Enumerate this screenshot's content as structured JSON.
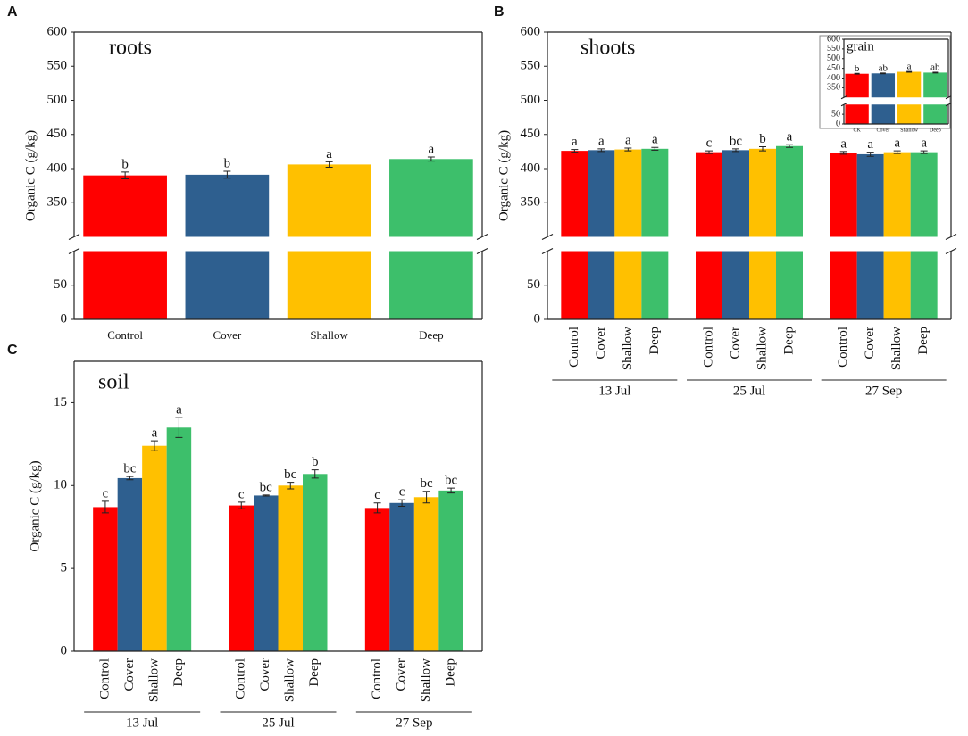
{
  "chart_data": [
    {
      "label": "A",
      "type": "bar",
      "title": "roots",
      "ylabel": "Organic C (g/kg)",
      "categories": [
        "Control",
        "Cover",
        "Shallow",
        "Deep"
      ],
      "values": [
        390,
        391,
        406,
        414
      ],
      "errors": [
        5,
        5,
        4,
        3
      ],
      "letters": [
        "b",
        "b",
        "a",
        "a"
      ],
      "colors": [
        "#ff0000",
        "#2e5f8f",
        "#ffc000",
        "#3dbf6b"
      ],
      "ylim": [
        0,
        600
      ],
      "ybreak": [
        100,
        300
      ],
      "yticks": [
        0,
        50,
        350,
        400,
        450,
        500,
        550,
        600
      ]
    },
    {
      "label": "B",
      "type": "grouped_bar",
      "title": "shoots",
      "ylabel": "Organic C (g/kg)",
      "categories": [
        "13 Jul",
        "25 Jul",
        "27 Sep"
      ],
      "series": [
        {
          "name": "Control",
          "color": "#ff0000",
          "values": [
            426,
            424,
            423
          ],
          "errors": [
            2,
            2,
            2
          ],
          "letters": [
            "a",
            "c",
            "a"
          ]
        },
        {
          "name": "Cover",
          "color": "#2e5f8f",
          "values": [
            427,
            427,
            421
          ],
          "errors": [
            2,
            2,
            3
          ],
          "letters": [
            "a",
            "bc",
            "a"
          ]
        },
        {
          "name": "Shallow",
          "color": "#ffc000",
          "values": [
            428,
            429,
            424
          ],
          "errors": [
            2,
            3,
            2
          ],
          "letters": [
            "a",
            "b",
            "a"
          ]
        },
        {
          "name": "Deep",
          "color": "#3dbf6b",
          "values": [
            429,
            433,
            424
          ],
          "errors": [
            2,
            2,
            2
          ],
          "letters": [
            "a",
            "a",
            "a"
          ]
        }
      ],
      "ylim": [
        0,
        600
      ],
      "ybreak": [
        100,
        300
      ],
      "yticks": [
        0,
        50,
        350,
        400,
        450,
        500,
        550,
        600
      ]
    },
    {
      "type": "bar",
      "title": "grain",
      "categories": [
        "CK",
        "Cover",
        "Shallow",
        "Deep"
      ],
      "values": [
        422,
        424,
        432,
        428
      ],
      "errors": [
        2,
        2,
        2,
        2
      ],
      "letters": [
        "b",
        "ab",
        "a",
        "ab"
      ],
      "colors": [
        "#ff0000",
        "#2e5f8f",
        "#ffc000",
        "#3dbf6b"
      ],
      "ylim": [
        0,
        600
      ],
      "ybreak": [
        100,
        300
      ],
      "yticks": [
        0,
        50,
        350,
        400,
        450,
        500,
        550,
        600
      ]
    },
    {
      "label": "C",
      "type": "grouped_bar",
      "title": "soil",
      "ylabel": "Organic C (g/kg)",
      "categories": [
        "13 Jul",
        "25 Jul",
        "27 Sep"
      ],
      "series": [
        {
          "name": "Control",
          "color": "#ff0000",
          "values": [
            8.7,
            8.8,
            8.65
          ],
          "errors": [
            0.35,
            0.2,
            0.3
          ],
          "letters": [
            "c",
            "c",
            "c"
          ]
        },
        {
          "name": "Cover",
          "color": "#2e5f8f",
          "values": [
            10.45,
            9.4,
            8.95
          ],
          "errors": [
            0.1,
            0.03,
            0.2
          ],
          "letters": [
            "bc",
            "bc",
            "c"
          ]
        },
        {
          "name": "Shallow",
          "color": "#ffc000",
          "values": [
            12.4,
            10.0,
            9.3
          ],
          "errors": [
            0.3,
            0.2,
            0.35
          ],
          "letters": [
            "a",
            "bc",
            "bc"
          ]
        },
        {
          "name": "Deep",
          "color": "#3dbf6b",
          "values": [
            13.5,
            10.7,
            9.7
          ],
          "errors": [
            0.6,
            0.25,
            0.15
          ],
          "letters": [
            "a",
            "b",
            "bc"
          ]
        }
      ],
      "ylim": [
        0,
        17.5
      ],
      "yticks": [
        0,
        5,
        10,
        15
      ]
    }
  ]
}
